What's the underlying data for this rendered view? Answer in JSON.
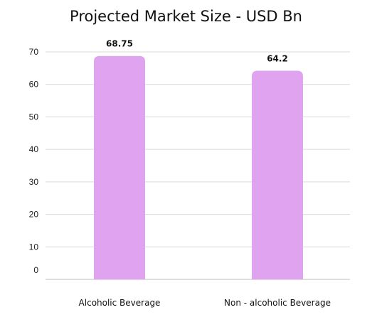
{
  "chart_data": {
    "type": "bar",
    "title": "Projected Market Size - USD Bn",
    "xlabel": "",
    "ylabel": "",
    "categories": [
      "Alcoholic Beverage",
      "Non - alcoholic Beverage"
    ],
    "values": [
      68.75,
      64.2
    ],
    "data_labels": [
      "68.75",
      "64.2"
    ],
    "yticks": [
      0,
      10,
      20,
      30,
      40,
      50,
      60,
      70
    ],
    "ylim": [
      0,
      72
    ],
    "grid": true,
    "legend": "none",
    "colors": {
      "bar": "#dfa3f0",
      "grid": "#d9d9d9",
      "axis": "#bdbdbd"
    }
  }
}
